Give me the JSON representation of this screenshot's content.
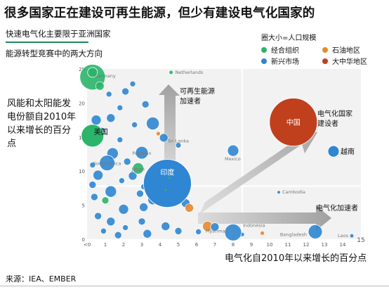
{
  "title": "很多国家正在建设可再生能源，但少有建设电气化国家的",
  "subtitle": "快速电气化主要限于亚洲国家",
  "subtitle2": "能源转型竞赛中的两大方向",
  "source": "来源：IEA、EMBER",
  "legend": {
    "size_note": "圈大小=人口规模",
    "items": [
      {
        "label": "经合组织",
        "color": "#2bb46a"
      },
      {
        "label": "石油地区",
        "color": "#e58a2c"
      },
      {
        "label": "新兴市场",
        "color": "#2f86d2"
      },
      {
        "label": "大中华地区",
        "color": "#c0401e"
      }
    ]
  },
  "chart_data": {
    "type": "scatter",
    "title": "很多国家正在建设可再生能源，但少有建设电气化国家的",
    "xlabel": "电气化自2010年以来增长的百分点",
    "ylabel": "风能和太阳能发电份额自2010年以来增长的百分点",
    "xlim": [
      0,
      15
    ],
    "ylim": [
      0,
      25
    ],
    "x_ticks": [
      "<0",
      "1",
      "2",
      "3",
      "4",
      "5",
      "6",
      "7",
      "8",
      "9",
      "10",
      "11",
      "12",
      "13",
      "14",
      "15"
    ],
    "y_ticks": [
      "0",
      "5",
      "10",
      "15",
      "20",
      "25"
    ],
    "divider": {
      "x": 8.5,
      "y": 7.8
    },
    "quadrant_labels": {
      "renewables": "可再生能源\n加速者",
      "builders": "电气化国家\n建设者",
      "electrification": "电气化加速者"
    },
    "points": [
      {
        "label": "中国",
        "x": 11.3,
        "y": 17.2,
        "group": "大中华地区",
        "highlight": true
      },
      {
        "label": "印度",
        "x": 4.4,
        "y": 8.2,
        "group": "新兴市场",
        "highlight": true
      },
      {
        "label": "美国",
        "x": 0.3,
        "y": 15.2,
        "group": "经合组织",
        "highlight": true
      },
      {
        "label": "越南",
        "x": 13.5,
        "y": 12.9,
        "group": "新兴市场",
        "highlight": true
      },
      {
        "label": "Germany",
        "x": 0.3,
        "y": 24.5,
        "group": "经合组织"
      },
      {
        "label": "Netherlands",
        "x": 4.6,
        "y": 24.5,
        "group": "经合组织"
      },
      {
        "label": "South Africa",
        "x": 1.1,
        "y": 11.2,
        "group": "新兴市场"
      },
      {
        "label": "Pakistan",
        "x": 3.0,
        "y": 12.7,
        "group": "新兴市场"
      },
      {
        "label": "Japan",
        "x": 2.8,
        "y": 10.4,
        "group": "经合组织"
      },
      {
        "label": "Sri Lanka",
        "x": 5.0,
        "y": 13.8,
        "group": "新兴市场"
      },
      {
        "label": "Mexico",
        "x": 8.0,
        "y": 13.0,
        "group": "新兴市场"
      },
      {
        "label": "Cambodia",
        "x": 10.5,
        "y": 6.9,
        "group": "新兴市场"
      },
      {
        "label": "Indonesia",
        "x": 8.0,
        "y": 1.0,
        "group": "新兴市场"
      },
      {
        "label": "Bangladesh",
        "x": 12.5,
        "y": 1.1,
        "group": "新兴市场"
      },
      {
        "label": "Myanmar",
        "x": 7.0,
        "y": 1.8,
        "group": "新兴市场"
      },
      {
        "label": "Laos",
        "x": 14.5,
        "y": 0.5,
        "group": "新兴市场"
      }
    ],
    "other_points": [
      {
        "x": 0.3,
        "y": 23.8,
        "group": "经合组织"
      },
      {
        "x": 0.7,
        "y": 22.5,
        "group": "经合组织"
      },
      {
        "x": 1.2,
        "y": 21.3,
        "group": "新兴市场"
      },
      {
        "x": 2.1,
        "y": 21.7,
        "group": "新兴市场"
      },
      {
        "x": 2.5,
        "y": 22.8,
        "group": "新兴市场"
      },
      {
        "x": 1.8,
        "y": 19.3,
        "group": "新兴市场"
      },
      {
        "x": 3.2,
        "y": 19.8,
        "group": "新兴市场"
      },
      {
        "x": 0.5,
        "y": 17.5,
        "group": "新兴市场"
      },
      {
        "x": 1.3,
        "y": 17.8,
        "group": "新兴市场"
      },
      {
        "x": 2.6,
        "y": 16.8,
        "group": "新兴市场"
      },
      {
        "x": 3.6,
        "y": 17.0,
        "group": "新兴市场"
      },
      {
        "x": 0.8,
        "y": 15.9,
        "group": "新兴市场"
      },
      {
        "x": 1.8,
        "y": 14.6,
        "group": "新兴市场"
      },
      {
        "x": 3.9,
        "y": 15.5,
        "group": "石油地区"
      },
      {
        "x": 4.2,
        "y": 14.9,
        "group": "新兴市场"
      },
      {
        "x": 1.4,
        "y": 12.6,
        "group": "新兴市场"
      },
      {
        "x": 2.2,
        "y": 11.4,
        "group": "新兴市场"
      },
      {
        "x": 0.3,
        "y": 10.9,
        "group": "新兴市场"
      },
      {
        "x": 0.6,
        "y": 9.4,
        "group": "新兴市场"
      },
      {
        "x": 1.9,
        "y": 8.6,
        "group": "新兴市场"
      },
      {
        "x": 2.5,
        "y": 9.3,
        "group": "新兴市场"
      },
      {
        "x": 0.3,
        "y": 8.0,
        "group": "新兴市场"
      },
      {
        "x": 1.3,
        "y": 7.0,
        "group": "新兴市场"
      },
      {
        "x": 2.9,
        "y": 6.7,
        "group": "新兴市场"
      },
      {
        "x": 3.6,
        "y": 5.8,
        "group": "新兴市场"
      },
      {
        "x": 0.4,
        "y": 6.2,
        "group": "新兴市场"
      },
      {
        "x": 1.0,
        "y": 5.7,
        "group": "经合组织"
      },
      {
        "x": 2.0,
        "y": 4.4,
        "group": "新兴市场"
      },
      {
        "x": 3.1,
        "y": 4.7,
        "group": "新兴市场"
      },
      {
        "x": 4.6,
        "y": 5.6,
        "group": "新兴市场"
      },
      {
        "x": 5.4,
        "y": 5.3,
        "group": "新兴市场"
      },
      {
        "x": 5.6,
        "y": 4.6,
        "group": "石油地区"
      },
      {
        "x": 0.6,
        "y": 3.4,
        "group": "新兴市场"
      },
      {
        "x": 1.3,
        "y": 2.6,
        "group": "新兴市场"
      },
      {
        "x": 2.1,
        "y": 1.7,
        "group": "新兴市场"
      },
      {
        "x": 3.0,
        "y": 2.6,
        "group": "新兴市场"
      },
      {
        "x": 4.3,
        "y": 1.9,
        "group": "新兴市场"
      },
      {
        "x": 5.0,
        "y": 1.2,
        "group": "新兴市场"
      },
      {
        "x": 6.1,
        "y": 1.1,
        "group": "新兴市场"
      },
      {
        "x": 6.6,
        "y": 1.9,
        "group": "石油地区"
      },
      {
        "x": 8.5,
        "y": 0.7,
        "group": "新兴市场"
      },
      {
        "x": 9.6,
        "y": 0.9,
        "group": "石油地区"
      },
      {
        "x": 0.9,
        "y": 1.2,
        "group": "新兴市场"
      },
      {
        "x": 1.7,
        "y": 0.6,
        "group": "新兴市场"
      },
      {
        "x": 3.3,
        "y": 0.8,
        "group": "新兴市场"
      },
      {
        "x": 4.8,
        "y": 6.8,
        "group": "经合组织"
      },
      {
        "x": 4.0,
        "y": 7.7,
        "group": "经合组织"
      },
      {
        "x": 3.1,
        "y": 7.7,
        "group": "新兴市场"
      }
    ]
  }
}
